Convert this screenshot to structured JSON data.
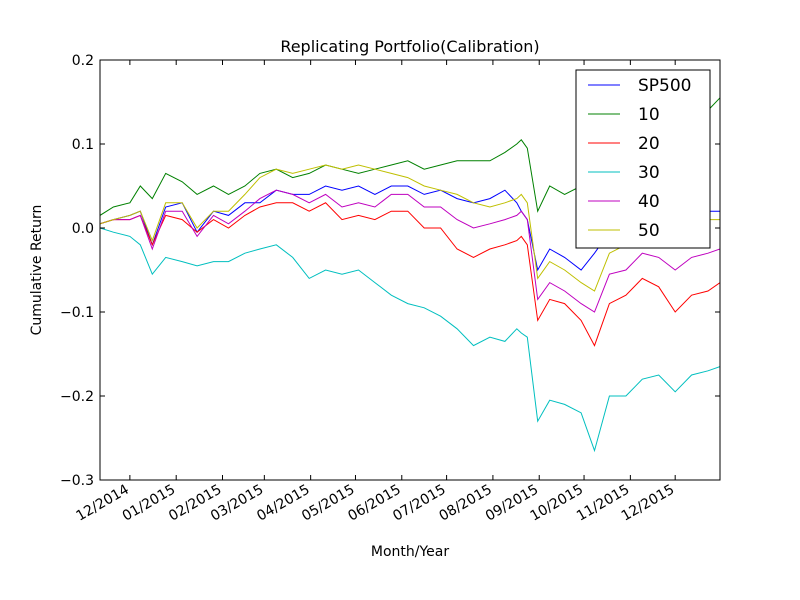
{
  "chart_data": {
    "type": "line",
    "title": "Replicating Portfolio(Calibration)",
    "xlabel": "Month/Year",
    "ylabel": "Cumulative Return",
    "xlim": [
      "2014-11-11",
      "2015-12-31"
    ],
    "ylim": [
      -0.3,
      0.2
    ],
    "yticks": [
      {
        "value": 0.2,
        "label": "0.2"
      },
      {
        "value": 0.1,
        "label": "0.1"
      },
      {
        "value": 0.0,
        "label": "0.0"
      },
      {
        "value": -0.1,
        "label": "−0.1"
      },
      {
        "value": -0.2,
        "label": "−0.2"
      },
      {
        "value": -0.3,
        "label": "−0.3"
      }
    ],
    "xticks": [
      {
        "date": "2014-12-01",
        "label": "12/2014"
      },
      {
        "date": "2015-01-01",
        "label": "01/2015"
      },
      {
        "date": "2015-02-01",
        "label": "02/2015"
      },
      {
        "date": "2015-03-01",
        "label": "03/2015"
      },
      {
        "date": "2015-04-01",
        "label": "04/2015"
      },
      {
        "date": "2015-05-01",
        "label": "05/2015"
      },
      {
        "date": "2015-06-01",
        "label": "06/2015"
      },
      {
        "date": "2015-07-01",
        "label": "07/2015"
      },
      {
        "date": "2015-08-01",
        "label": "08/2015"
      },
      {
        "date": "2015-09-01",
        "label": "09/2015"
      },
      {
        "date": "2015-10-01",
        "label": "10/2015"
      },
      {
        "date": "2015-11-01",
        "label": "11/2015"
      },
      {
        "date": "2015-12-01",
        "label": "12/2015"
      }
    ],
    "grid": false,
    "legend_position": "top-right",
    "series": [
      {
        "name": "SP500",
        "color": "#0000ff",
        "x": [
          "2014-11-11",
          "2014-11-20",
          "2014-12-01",
          "2014-12-08",
          "2014-12-16",
          "2014-12-25",
          "2015-01-05",
          "2015-01-15",
          "2015-01-26",
          "2015-02-05",
          "2015-02-16",
          "2015-02-26",
          "2015-03-09",
          "2015-03-20",
          "2015-03-31",
          "2015-04-11",
          "2015-04-22",
          "2015-05-03",
          "2015-05-14",
          "2015-05-25",
          "2015-06-05",
          "2015-06-16",
          "2015-06-27",
          "2015-07-08",
          "2015-07-19",
          "2015-07-30",
          "2015-08-09",
          "2015-08-17",
          "2015-08-20",
          "2015-08-24",
          "2015-08-31",
          "2015-09-08",
          "2015-09-18",
          "2015-09-29",
          "2015-10-08",
          "2015-10-18",
          "2015-10-29",
          "2015-11-09",
          "2015-11-20",
          "2015-12-01",
          "2015-12-12",
          "2015-12-23",
          "2015-12-31"
        ],
        "y": [
          0.005,
          0.01,
          0.015,
          0.02,
          -0.02,
          0.025,
          0.03,
          -0.005,
          0.02,
          0.015,
          0.03,
          0.03,
          0.045,
          0.04,
          0.04,
          0.05,
          0.045,
          0.05,
          0.04,
          0.05,
          0.05,
          0.04,
          0.045,
          0.035,
          0.03,
          0.035,
          0.045,
          0.03,
          0.02,
          0.01,
          -0.05,
          -0.025,
          -0.035,
          -0.05,
          -0.03,
          -0.005,
          0.0,
          0.02,
          0.02,
          -0.005,
          0.025,
          0.02,
          0.02
        ]
      },
      {
        "name": "10",
        "color": "#008000",
        "x": [
          "2014-11-11",
          "2014-11-20",
          "2014-12-01",
          "2014-12-08",
          "2014-12-16",
          "2014-12-25",
          "2015-01-05",
          "2015-01-15",
          "2015-01-26",
          "2015-02-05",
          "2015-02-16",
          "2015-02-26",
          "2015-03-09",
          "2015-03-20",
          "2015-03-31",
          "2015-04-11",
          "2015-04-22",
          "2015-05-03",
          "2015-05-14",
          "2015-05-25",
          "2015-06-05",
          "2015-06-16",
          "2015-06-27",
          "2015-07-08",
          "2015-07-19",
          "2015-07-30",
          "2015-08-09",
          "2015-08-17",
          "2015-08-20",
          "2015-08-24",
          "2015-08-31",
          "2015-09-08",
          "2015-09-18",
          "2015-09-29",
          "2015-10-08",
          "2015-10-18",
          "2015-10-29",
          "2015-11-09",
          "2015-11-20",
          "2015-12-01",
          "2015-12-12",
          "2015-12-23",
          "2015-12-31"
        ],
        "y": [
          0.015,
          0.025,
          0.03,
          0.05,
          0.035,
          0.065,
          0.055,
          0.04,
          0.05,
          0.04,
          0.05,
          0.065,
          0.07,
          0.06,
          0.065,
          0.075,
          0.07,
          0.065,
          0.07,
          0.075,
          0.08,
          0.07,
          0.075,
          0.08,
          0.08,
          0.08,
          0.09,
          0.1,
          0.105,
          0.095,
          0.02,
          0.05,
          0.04,
          0.05,
          0.035,
          0.06,
          0.08,
          0.09,
          0.085,
          0.11,
          0.12,
          0.14,
          0.155
        ]
      },
      {
        "name": "20",
        "color": "#ff0000",
        "x": [
          "2014-11-11",
          "2014-11-20",
          "2014-12-01",
          "2014-12-08",
          "2014-12-16",
          "2014-12-25",
          "2015-01-05",
          "2015-01-15",
          "2015-01-26",
          "2015-02-05",
          "2015-02-16",
          "2015-02-26",
          "2015-03-09",
          "2015-03-20",
          "2015-03-31",
          "2015-04-11",
          "2015-04-22",
          "2015-05-03",
          "2015-05-14",
          "2015-05-25",
          "2015-06-05",
          "2015-06-16",
          "2015-06-27",
          "2015-07-08",
          "2015-07-19",
          "2015-07-30",
          "2015-08-09",
          "2015-08-17",
          "2015-08-20",
          "2015-08-24",
          "2015-08-31",
          "2015-09-08",
          "2015-09-18",
          "2015-09-29",
          "2015-10-08",
          "2015-10-18",
          "2015-10-29",
          "2015-11-09",
          "2015-11-20",
          "2015-12-01",
          "2015-12-12",
          "2015-12-23",
          "2015-12-31"
        ],
        "y": [
          0.005,
          0.01,
          0.01,
          0.015,
          -0.02,
          0.015,
          0.01,
          -0.005,
          0.01,
          0.0,
          0.015,
          0.025,
          0.03,
          0.03,
          0.02,
          0.03,
          0.01,
          0.015,
          0.01,
          0.02,
          0.02,
          0.0,
          0.0,
          -0.025,
          -0.035,
          -0.025,
          -0.02,
          -0.015,
          -0.01,
          -0.02,
          -0.11,
          -0.085,
          -0.09,
          -0.11,
          -0.14,
          -0.09,
          -0.08,
          -0.06,
          -0.07,
          -0.1,
          -0.08,
          -0.075,
          -0.065
        ]
      },
      {
        "name": "30",
        "color": "#00bfbf",
        "x": [
          "2014-11-11",
          "2014-11-20",
          "2014-12-01",
          "2014-12-08",
          "2014-12-16",
          "2014-12-25",
          "2015-01-05",
          "2015-01-15",
          "2015-01-26",
          "2015-02-05",
          "2015-02-16",
          "2015-02-26",
          "2015-03-09",
          "2015-03-20",
          "2015-03-31",
          "2015-04-11",
          "2015-04-22",
          "2015-05-03",
          "2015-05-14",
          "2015-05-25",
          "2015-06-05",
          "2015-06-16",
          "2015-06-27",
          "2015-07-08",
          "2015-07-19",
          "2015-07-30",
          "2015-08-09",
          "2015-08-17",
          "2015-08-20",
          "2015-08-24",
          "2015-08-31",
          "2015-09-08",
          "2015-09-18",
          "2015-09-29",
          "2015-10-08",
          "2015-10-18",
          "2015-10-29",
          "2015-11-09",
          "2015-11-20",
          "2015-12-01",
          "2015-12-12",
          "2015-12-23",
          "2015-12-31"
        ],
        "y": [
          0.0,
          -0.005,
          -0.01,
          -0.02,
          -0.055,
          -0.035,
          -0.04,
          -0.045,
          -0.04,
          -0.04,
          -0.03,
          -0.025,
          -0.02,
          -0.035,
          -0.06,
          -0.05,
          -0.055,
          -0.05,
          -0.065,
          -0.08,
          -0.09,
          -0.095,
          -0.105,
          -0.12,
          -0.14,
          -0.13,
          -0.135,
          -0.12,
          -0.125,
          -0.13,
          -0.23,
          -0.205,
          -0.21,
          -0.22,
          -0.265,
          -0.2,
          -0.2,
          -0.18,
          -0.175,
          -0.195,
          -0.175,
          -0.17,
          -0.165
        ]
      },
      {
        "name": "40",
        "color": "#bf00bf",
        "x": [
          "2014-11-11",
          "2014-11-20",
          "2014-12-01",
          "2014-12-08",
          "2014-12-16",
          "2014-12-25",
          "2015-01-05",
          "2015-01-15",
          "2015-01-26",
          "2015-02-05",
          "2015-02-16",
          "2015-02-26",
          "2015-03-09",
          "2015-03-20",
          "2015-03-31",
          "2015-04-11",
          "2015-04-22",
          "2015-05-03",
          "2015-05-14",
          "2015-05-25",
          "2015-06-05",
          "2015-06-16",
          "2015-06-27",
          "2015-07-08",
          "2015-07-19",
          "2015-07-30",
          "2015-08-09",
          "2015-08-17",
          "2015-08-20",
          "2015-08-24",
          "2015-08-31",
          "2015-09-08",
          "2015-09-18",
          "2015-09-29",
          "2015-10-08",
          "2015-10-18",
          "2015-10-29",
          "2015-11-09",
          "2015-11-20",
          "2015-12-01",
          "2015-12-12",
          "2015-12-23",
          "2015-12-31"
        ],
        "y": [
          0.005,
          0.01,
          0.01,
          0.015,
          -0.025,
          0.02,
          0.02,
          -0.01,
          0.015,
          0.005,
          0.02,
          0.035,
          0.045,
          0.04,
          0.03,
          0.04,
          0.025,
          0.03,
          0.025,
          0.04,
          0.04,
          0.025,
          0.025,
          0.01,
          0.0,
          0.005,
          0.01,
          0.015,
          0.02,
          0.01,
          -0.085,
          -0.065,
          -0.075,
          -0.09,
          -0.1,
          -0.055,
          -0.05,
          -0.03,
          -0.035,
          -0.05,
          -0.035,
          -0.03,
          -0.025
        ]
      },
      {
        "name": "50",
        "color": "#bfbf00",
        "x": [
          "2014-11-11",
          "2014-11-20",
          "2014-12-01",
          "2014-12-08",
          "2014-12-16",
          "2014-12-25",
          "2015-01-05",
          "2015-01-15",
          "2015-01-26",
          "2015-02-05",
          "2015-02-16",
          "2015-02-26",
          "2015-03-09",
          "2015-03-20",
          "2015-03-31",
          "2015-04-11",
          "2015-04-22",
          "2015-05-03",
          "2015-05-14",
          "2015-05-25",
          "2015-06-05",
          "2015-06-16",
          "2015-06-27",
          "2015-07-08",
          "2015-07-19",
          "2015-07-30",
          "2015-08-09",
          "2015-08-17",
          "2015-08-20",
          "2015-08-24",
          "2015-08-31",
          "2015-09-08",
          "2015-09-18",
          "2015-09-29",
          "2015-10-08",
          "2015-10-18",
          "2015-10-29",
          "2015-11-09",
          "2015-11-20",
          "2015-12-01",
          "2015-12-12",
          "2015-12-23",
          "2015-12-31"
        ],
        "y": [
          0.005,
          0.01,
          0.015,
          0.02,
          -0.015,
          0.03,
          0.03,
          0.0,
          0.02,
          0.02,
          0.04,
          0.06,
          0.07,
          0.065,
          0.07,
          0.075,
          0.07,
          0.075,
          0.07,
          0.065,
          0.06,
          0.05,
          0.045,
          0.04,
          0.03,
          0.025,
          0.03,
          0.035,
          0.04,
          0.03,
          -0.06,
          -0.04,
          -0.05,
          -0.065,
          -0.075,
          -0.03,
          -0.02,
          0.0,
          -0.005,
          -0.02,
          0.005,
          0.01,
          0.01
        ]
      }
    ]
  }
}
